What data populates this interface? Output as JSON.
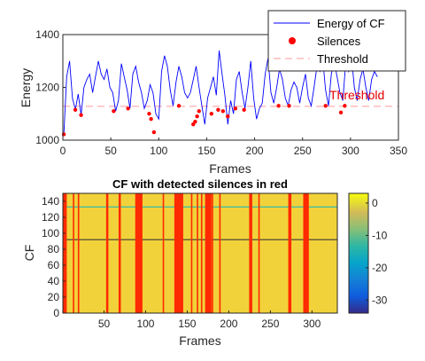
{
  "chart_data": [
    {
      "type": "line",
      "xlabel": "Frames",
      "ylabel": "Energy",
      "xlim": [
        0,
        350
      ],
      "ylim": [
        1000,
        1400
      ],
      "xticks": [
        0,
        50,
        100,
        150,
        200,
        250,
        300,
        350
      ],
      "yticks": [
        1000,
        1200,
        1400
      ],
      "grid": false,
      "legend": {
        "placement": "top-right",
        "entries": [
          "Energy of CF",
          "Silences",
          "Threshold"
        ]
      },
      "threshold": {
        "value": 1128,
        "label": "Threshold",
        "color": "#e60000"
      },
      "series": [
        {
          "name": "Energy of CF",
          "color": "#0000ff",
          "x": [
            1,
            4,
            7,
            10,
            13,
            16,
            19,
            22,
            25,
            28,
            31,
            34,
            37,
            40,
            43,
            46,
            49,
            52,
            55,
            58,
            61,
            64,
            67,
            70,
            73,
            76,
            79,
            82,
            85,
            88,
            91,
            94,
            97,
            100,
            103,
            106,
            109,
            112,
            115,
            118,
            121,
            124,
            127,
            130,
            133,
            136,
            139,
            142,
            145,
            148,
            151,
            154,
            157,
            160,
            163,
            166,
            169,
            172,
            175,
            178,
            181,
            184,
            187,
            190,
            193,
            196,
            199,
            202,
            205,
            208,
            211,
            214,
            217,
            220,
            223,
            226,
            229,
            232,
            235,
            238,
            241,
            244,
            247,
            250,
            253,
            256,
            259,
            262,
            265,
            268,
            271,
            274,
            277,
            280,
            283,
            286,
            289,
            292,
            295,
            298,
            301,
            304,
            307,
            310,
            313,
            316,
            319,
            322,
            325,
            328
          ],
          "values": [
            1022,
            1240,
            1300,
            1160,
            1115,
            1175,
            1095,
            1200,
            1230,
            1250,
            1180,
            1240,
            1300,
            1250,
            1230,
            1270,
            1200,
            1180,
            1110,
            1150,
            1290,
            1240,
            1190,
            1120,
            1250,
            1280,
            1220,
            1180,
            1120,
            1150,
            1210,
            1180,
            1100,
            1080,
            1260,
            1320,
            1280,
            1190,
            1130,
            1220,
            1280,
            1240,
            1180,
            1160,
            1180,
            1230,
            1280,
            1200,
            1130,
            1060,
            1160,
            1200,
            1240,
            1170,
            1340,
            1250,
            1170,
            1060,
            1150,
            1100,
            1230,
            1260,
            1180,
            1120,
            1200,
            1300,
            1160,
            1080,
            1120,
            1140,
            1250,
            1310,
            1180,
            1140,
            1200,
            1270,
            1230,
            1160,
            1130,
            1190,
            1220,
            1200,
            1140,
            1200,
            1250,
            1160,
            1130,
            1200,
            1280,
            1260,
            1310,
            1190,
            1130,
            1250,
            1300,
            1240,
            1180,
            1150,
            1290,
            1260,
            1320,
            1200,
            1150,
            1230,
            1270,
            1200,
            1150,
            1230,
            1260,
            1240
          ]
        },
        {
          "name": "Silences",
          "type": "scatter",
          "color": "#ff0000",
          "x": [
            1,
            13,
            19,
            53,
            68,
            90,
            92,
            95,
            121,
            136,
            138,
            140,
            142,
            155,
            162,
            167,
            172,
            180,
            189,
            225,
            236,
            274,
            290,
            294
          ],
          "values": [
            1022,
            1115,
            1095,
            1110,
            1120,
            1100,
            1080,
            1030,
            1130,
            1060,
            1070,
            1090,
            1110,
            1100,
            1115,
            1110,
            1090,
            1120,
            1115,
            1130,
            1130,
            1130,
            1105,
            1130
          ]
        }
      ]
    },
    {
      "type": "heatmap",
      "title": "CF with detected silences in red",
      "xlabel": "Frames",
      "ylabel": "CF",
      "xlim": [
        1,
        330
      ],
      "ylim": [
        0,
        150
      ],
      "xticks": [
        50,
        100,
        150,
        200,
        250,
        300
      ],
      "yticks": [
        0,
        20,
        40,
        60,
        80,
        100,
        120,
        140
      ],
      "colorbar": {
        "ticks": [
          0,
          -10,
          -20,
          -30
        ],
        "range": [
          -34,
          3
        ]
      },
      "background_color": "#f2d23a",
      "silence_color": "#ff2a00",
      "silence_frames": [
        1,
        2,
        3,
        4,
        13,
        19,
        53,
        54,
        68,
        69,
        88,
        89,
        90,
        91,
        92,
        93,
        94,
        95,
        121,
        135,
        136,
        137,
        138,
        139,
        140,
        141,
        142,
        143,
        144,
        155,
        162,
        167,
        172,
        173,
        174,
        175,
        176,
        177,
        178,
        180,
        189,
        225,
        226,
        227,
        236,
        272,
        273,
        274,
        290,
        291,
        292,
        293,
        294,
        295
      ],
      "horizontal_lines": [
        {
          "value": 133,
          "color": "#27b8b0"
        },
        {
          "value": 92,
          "color": "#3a3a3a"
        }
      ]
    }
  ]
}
